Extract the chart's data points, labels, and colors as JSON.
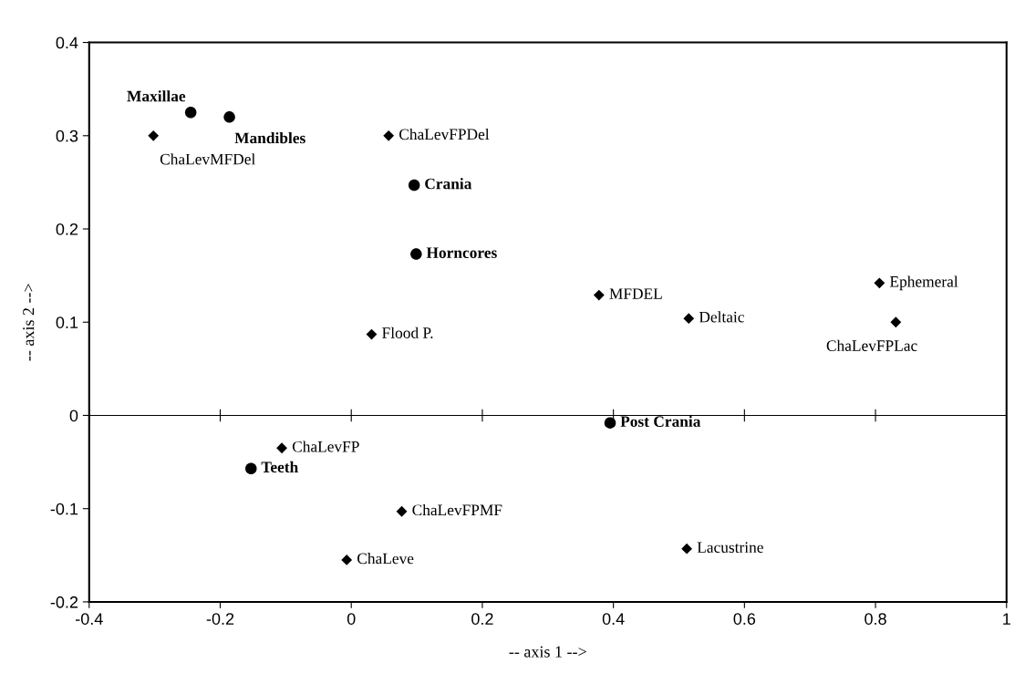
{
  "chart_data": {
    "type": "scatter",
    "xlabel": "-- axis 1 -->",
    "ylabel": "-- axis 2 -->",
    "xlim": [
      -0.4,
      1
    ],
    "ylim": [
      -0.2,
      0.4
    ],
    "xticks": [
      -0.4,
      -0.2,
      0,
      0.2,
      0.4,
      0.6,
      0.8,
      1
    ],
    "yticks": [
      -0.2,
      -0.1,
      0,
      0.1,
      0.2,
      0.3,
      0.4
    ],
    "grid": false,
    "legend": false,
    "ref_lines": [
      {
        "axis": "y",
        "value": 0,
        "color": "#000000",
        "line_style": "solid"
      }
    ],
    "series": [
      {
        "color": "#000000",
        "marker": "circle",
        "x": [
          -0.245,
          -0.186,
          0.096,
          0.099,
          0.395,
          -0.153
        ],
        "values": [
          0.325,
          0.32,
          0.247,
          0.173,
          -0.008,
          -0.057
        ],
        "value_labels": [
          "Maxillae",
          "Mandibles",
          "Crania",
          "Horncores",
          "Post Crania",
          "Teeth"
        ]
      },
      {
        "color": "#000000",
        "marker": "diamond",
        "x": [
          -0.302,
          0.057,
          0.378,
          0.515,
          0.806,
          0.831,
          0.031,
          -0.106,
          0.077,
          -0.007,
          0.512
        ],
        "values": [
          0.3,
          0.3,
          0.129,
          0.104,
          0.142,
          0.1,
          0.087,
          -0.035,
          -0.103,
          -0.155,
          -0.143
        ],
        "value_labels": [
          "ChaLevMFDel",
          "ChaLevFPDel",
          "MFDEL",
          "Deltaic",
          "Ephemeral",
          "ChaLevFPLac",
          "Flood P.",
          "ChaLevFP",
          "ChaLevFPMF",
          "ChaLeve",
          "Lacustrine"
        ]
      }
    ]
  }
}
